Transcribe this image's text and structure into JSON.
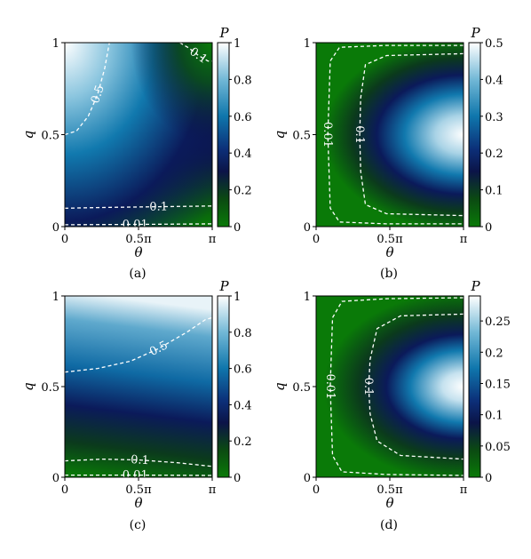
{
  "chart_data": [
    {
      "type": "heatmap",
      "caption": "(a)",
      "xlabel": "θ",
      "ylabel": "q",
      "xlim": [
        0,
        3.14159
      ],
      "ylim": [
        0,
        1
      ],
      "x_ticks": [
        "0",
        "0.5π",
        "π"
      ],
      "y_ticks": [
        "0",
        "0.5",
        "1"
      ],
      "colorbar": {
        "label": "P",
        "min": 0,
        "max": 1,
        "ticks": [
          "0",
          "0.2",
          "0.4",
          "0.6",
          "0.8",
          "1"
        ]
      },
      "contours": [
        {
          "level": 0.5,
          "label": "0.5",
          "points": [
            [
              0,
              0.5
            ],
            [
              0.25,
              0.52
            ],
            [
              0.5,
              0.6
            ],
            [
              0.7,
              0.72
            ],
            [
              0.85,
              0.86
            ],
            [
              0.95,
              1.0
            ]
          ]
        },
        {
          "level": 0.1,
          "label": "0.1",
          "points": [
            [
              0,
              0.1
            ],
            [
              1.0,
              0.105
            ],
            [
              2.0,
              0.108
            ],
            [
              3.14,
              0.112
            ]
          ]
        },
        {
          "level": 0.1,
          "label": "0.1",
          "points": [
            [
              2.45,
              1.0
            ],
            [
              2.65,
              0.97
            ],
            [
              2.85,
              0.93
            ],
            [
              3.05,
              0.9
            ],
            [
              3.14,
              0.9
            ]
          ]
        },
        {
          "level": 0.01,
          "label": "0.01",
          "points": [
            [
              0,
              0.01
            ],
            [
              1.5,
              0.012
            ],
            [
              3.14,
              0.015
            ]
          ]
        }
      ]
    },
    {
      "type": "heatmap",
      "caption": "(b)",
      "xlabel": "θ",
      "ylabel": "q",
      "xlim": [
        0,
        3.14159
      ],
      "ylim": [
        0,
        1
      ],
      "x_ticks": [
        "0",
        "0.5π",
        "π"
      ],
      "y_ticks": [
        "0",
        "0.5",
        "1"
      ],
      "colorbar": {
        "label": "P",
        "min": 0,
        "max": 0.5,
        "ticks": [
          "0",
          "0.1",
          "0.2",
          "0.3",
          "0.4",
          "0.5"
        ]
      },
      "contours": [
        {
          "level": 0.01,
          "label": "0.01",
          "points": [
            [
              3.14,
              0.985
            ],
            [
              1.5,
              0.985
            ],
            [
              0.5,
              0.975
            ],
            [
              0.3,
              0.9
            ],
            [
              0.25,
              0.5
            ],
            [
              0.3,
              0.1
            ],
            [
              0.5,
              0.025
            ],
            [
              1.5,
              0.015
            ],
            [
              3.14,
              0.015
            ]
          ]
        },
        {
          "level": 0.1,
          "label": "0.1",
          "points": [
            [
              3.14,
              0.94
            ],
            [
              1.5,
              0.93
            ],
            [
              1.05,
              0.88
            ],
            [
              0.95,
              0.7
            ],
            [
              0.93,
              0.5
            ],
            [
              0.95,
              0.3
            ],
            [
              1.05,
              0.12
            ],
            [
              1.5,
              0.07
            ],
            [
              3.14,
              0.06
            ]
          ]
        }
      ]
    },
    {
      "type": "heatmap",
      "caption": "(c)",
      "xlabel": "θ",
      "ylabel": "q",
      "xlim": [
        0,
        3.14159
      ],
      "ylim": [
        0,
        1
      ],
      "x_ticks": [
        "0",
        "0.5π",
        "π"
      ],
      "y_ticks": [
        "0",
        "0.5",
        "1"
      ],
      "colorbar": {
        "label": "P",
        "min": 0,
        "max": 1,
        "ticks": [
          "0",
          "0.2",
          "0.4",
          "0.6",
          "0.8",
          "1"
        ]
      },
      "contours": [
        {
          "level": 0.5,
          "label": "0.5",
          "points": [
            [
              0,
              0.58
            ],
            [
              0.7,
              0.6
            ],
            [
              1.4,
              0.64
            ],
            [
              2.0,
              0.71
            ],
            [
              2.6,
              0.8
            ],
            [
              3.0,
              0.87
            ],
            [
              3.14,
              0.88
            ]
          ]
        },
        {
          "level": 0.1,
          "label": "0.1",
          "points": [
            [
              0,
              0.09
            ],
            [
              0.8,
              0.1
            ],
            [
              1.6,
              0.095
            ],
            [
              2.4,
              0.08
            ],
            [
              3.14,
              0.06
            ]
          ]
        },
        {
          "level": 0.01,
          "label": "0.01",
          "points": [
            [
              0,
              0.012
            ],
            [
              1.5,
              0.012
            ],
            [
              3.14,
              0.01
            ]
          ]
        }
      ]
    },
    {
      "type": "heatmap",
      "caption": "(d)",
      "xlabel": "θ",
      "ylabel": "q",
      "xlim": [
        0,
        3.14159
      ],
      "ylim": [
        0,
        1
      ],
      "x_ticks": [
        "0",
        "0.5π",
        "π"
      ],
      "y_ticks": [
        "0",
        "0.5",
        "1"
      ],
      "colorbar": {
        "label": "P",
        "min": 0,
        "max": 0.29,
        "ticks": [
          "0",
          "0.05",
          "0.1",
          "0.15",
          "0.2",
          "0.25"
        ]
      },
      "contours": [
        {
          "level": 0.01,
          "label": "0.01",
          "points": [
            [
              3.14,
              0.99
            ],
            [
              1.5,
              0.985
            ],
            [
              0.55,
              0.97
            ],
            [
              0.35,
              0.88
            ],
            [
              0.3,
              0.5
            ],
            [
              0.35,
              0.12
            ],
            [
              0.55,
              0.03
            ],
            [
              1.5,
              0.015
            ],
            [
              3.14,
              0.01
            ]
          ]
        },
        {
          "level": 0.1,
          "label": "0.1",
          "points": [
            [
              3.14,
              0.9
            ],
            [
              1.8,
              0.89
            ],
            [
              1.3,
              0.82
            ],
            [
              1.15,
              0.65
            ],
            [
              1.12,
              0.5
            ],
            [
              1.15,
              0.35
            ],
            [
              1.3,
              0.2
            ],
            [
              1.8,
              0.12
            ],
            [
              3.14,
              0.1
            ]
          ]
        }
      ]
    }
  ]
}
